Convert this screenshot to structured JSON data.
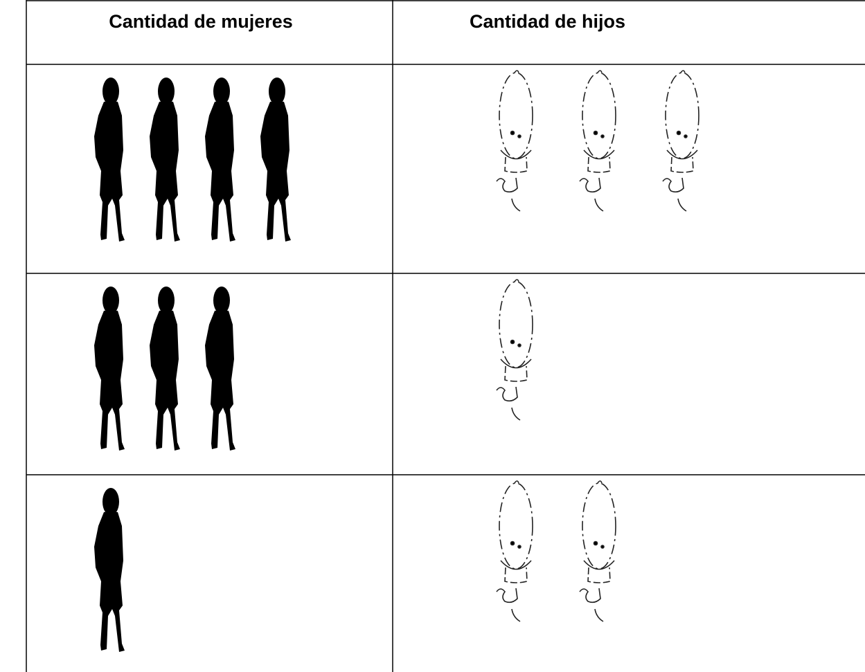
{
  "table": {
    "headers": [
      "Cantidad de mujeres",
      "Cantidad de hijos"
    ],
    "rows": [
      [
        4,
        3
      ],
      [
        3,
        1
      ],
      [
        1,
        2
      ]
    ]
  }
}
